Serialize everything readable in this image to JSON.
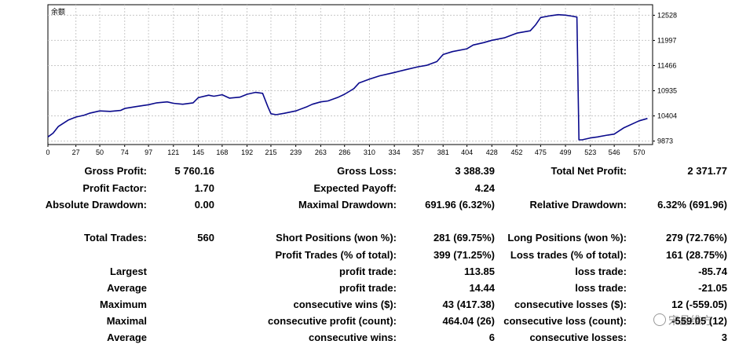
{
  "chart_data": {
    "type": "line",
    "title": "余额",
    "xlabel": "",
    "ylabel": "",
    "x_ticks": [
      0,
      27,
      50,
      74,
      97,
      121,
      145,
      168,
      192,
      215,
      239,
      263,
      286,
      310,
      334,
      357,
      381,
      404,
      428,
      452,
      475,
      499,
      523,
      546,
      570
    ],
    "y_ticks": [
      9873,
      10404,
      10935,
      11466,
      11997,
      12528
    ],
    "xlim": [
      0,
      583
    ],
    "ylim": [
      9800,
      12750
    ],
    "grid": true,
    "line_color": "#0a0a8c",
    "series": [
      {
        "x": [
          0,
          5,
          10,
          15,
          20,
          27,
          35,
          40,
          50,
          60,
          70,
          74,
          85,
          97,
          105,
          115,
          121,
          130,
          140,
          145,
          155,
          160,
          168,
          175,
          185,
          192,
          200,
          207,
          212,
          215,
          220,
          228,
          239,
          250,
          255,
          263,
          270,
          280,
          286,
          295,
          300,
          310,
          320,
          334,
          345,
          357,
          365,
          375,
          381,
          390,
          404,
          410,
          420,
          428,
          440,
          452,
          465,
          470,
          475,
          485,
          492,
          499,
          505,
          510,
          512,
          515,
          523,
          530,
          540,
          546,
          555,
          570,
          578
        ],
        "values": [
          9960,
          10040,
          10180,
          10250,
          10320,
          10380,
          10420,
          10460,
          10510,
          10500,
          10520,
          10560,
          10600,
          10640,
          10680,
          10700,
          10670,
          10650,
          10680,
          10790,
          10840,
          10820,
          10850,
          10780,
          10800,
          10860,
          10900,
          10880,
          10600,
          10450,
          10430,
          10460,
          10510,
          10600,
          10650,
          10700,
          10720,
          10800,
          10860,
          10980,
          11100,
          11180,
          11250,
          11320,
          11380,
          11440,
          11470,
          11550,
          11700,
          11760,
          11820,
          11900,
          11950,
          12000,
          12050,
          12150,
          12200,
          12320,
          12480,
          12520,
          12540,
          12530,
          12510,
          12490,
          9900,
          9900,
          9940,
          9960,
          10000,
          10020,
          10150,
          10300,
          10350
        ]
      }
    ]
  },
  "stats": {
    "gross_profit": {
      "label": "Gross Profit:",
      "value": "5 760.16"
    },
    "gross_loss": {
      "label": "Gross Loss:",
      "value": "3 388.39"
    },
    "total_net_profit": {
      "label": "Total Net Profit:",
      "value": "2 371.77"
    },
    "profit_factor": {
      "label": "Profit Factor:",
      "value": "1.70"
    },
    "expected_payoff": {
      "label": "Expected Payoff:",
      "value": "4.24"
    },
    "absolute_drawdown": {
      "label": "Absolute Drawdown:",
      "value": "0.00"
    },
    "maximal_drawdown": {
      "label": "Maximal Drawdown:",
      "value": "691.96 (6.32%)"
    },
    "relative_drawdown": {
      "label": "Relative Drawdown:",
      "value": "6.32% (691.96)"
    },
    "total_trades": {
      "label": "Total Trades:",
      "value": "560"
    },
    "short_positions": {
      "label": "Short Positions (won %):",
      "value": "281 (69.75%)"
    },
    "long_positions": {
      "label": "Long Positions (won %):",
      "value": "279 (72.76%)"
    },
    "profit_trades": {
      "label": "Profit Trades (% of total):",
      "value": "399 (71.25%)"
    },
    "loss_trades": {
      "label": "Loss trades (% of total):",
      "value": "161 (28.75%)"
    },
    "largest": {
      "label": "Largest",
      "profit_label": "profit trade:",
      "profit_value": "113.85",
      "loss_label": "loss trade:",
      "loss_value": "-85.74"
    },
    "average": {
      "label": "Average",
      "profit_label": "profit trade:",
      "profit_value": "14.44",
      "loss_label": "loss trade:",
      "loss_value": "-21.05"
    },
    "maximum": {
      "label": "Maximum",
      "profit_label": "consecutive wins ($):",
      "profit_value": "43 (417.38)",
      "loss_label": "consecutive losses ($):",
      "loss_value": "12 (-559.05)"
    },
    "maximal": {
      "label": "Maximal",
      "profit_label": "consecutive profit (count):",
      "profit_value": "464.04 (26)",
      "loss_label": "consecutive loss (count):",
      "loss_value": "-559.05 (12)"
    },
    "average2": {
      "label": "Average",
      "profit_label": "consecutive wins:",
      "profit_value": "6",
      "loss_label": "consecutive losses:",
      "loss_value": "3"
    }
  },
  "watermark": "宋旦维方"
}
